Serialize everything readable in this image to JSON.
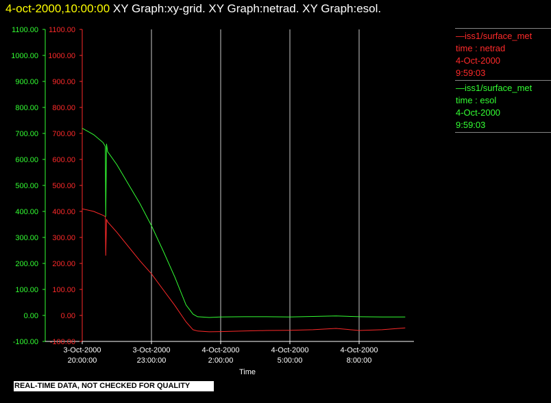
{
  "header": {
    "timestamp": "4-oct-2000,10:00:00",
    "graphs_text": "XY Graph:xy-grid.  XY Graph:netrad.  XY Graph:esol."
  },
  "legend": [
    {
      "line1": "—iss1/surface_met",
      "line2": "time : netrad",
      "line3": "4-Oct-2000",
      "line4": "9:59:03",
      "color": "#ff2a2a"
    },
    {
      "line1": "—iss1/surface_met",
      "line2": "time : esol",
      "line3": "4-Oct-2000",
      "line4": "9:59:03",
      "color": "#33ff33"
    }
  ],
  "footer": {
    "notice": "REAL-TIME DATA, NOT CHECKED FOR QUALITY"
  },
  "colors": {
    "netrad": "#ff2a2a",
    "esol": "#33ff33",
    "grid": "#cccccc",
    "axis_text": "#ffffff"
  },
  "chart_data": {
    "type": "line",
    "xlabel": "Time",
    "x_ticks": [
      {
        "h": 20,
        "l1": "3-Oct-2000",
        "l2": "20:00:00"
      },
      {
        "h": 23,
        "l1": "3-Oct-2000",
        "l2": "23:00:00"
      },
      {
        "h": 26,
        "l1": "4-Oct-2000",
        "l2": "2:00:00"
      },
      {
        "h": 29,
        "l1": "4-Oct-2000",
        "l2": "5:00:00"
      },
      {
        "h": 32,
        "l1": "4-Oct-2000",
        "l2": "8:00:00"
      }
    ],
    "x_range_hours": [
      20,
      34.5
    ],
    "ylim": [
      -100,
      1100
    ],
    "y_ticks": [
      -100,
      0,
      100,
      200,
      300,
      400,
      500,
      600,
      700,
      800,
      900,
      1000,
      1100
    ],
    "y_tick_labels": [
      "-100.00",
      "0.00",
      "100.00",
      "200.00",
      "300.00",
      "400.00",
      "500.00",
      "600.00",
      "700.00",
      "800.00",
      "900.00",
      "1000.00",
      "1100.00"
    ],
    "series": [
      {
        "name": "netrad",
        "x": [
          20.0,
          20.5,
          20.9,
          21.0,
          21.02,
          21.05,
          21.1,
          21.5,
          22.0,
          22.5,
          23.0,
          23.5,
          24.0,
          24.5,
          24.8,
          25.0,
          25.5,
          26.0,
          27.0,
          28.0,
          29.0,
          30.0,
          31.0,
          32.0,
          33.0,
          34.0
        ],
        "y": [
          410,
          400,
          385,
          380,
          230,
          370,
          360,
          320,
          265,
          210,
          160,
          100,
          40,
          -25,
          -55,
          -60,
          -63,
          -62,
          -60,
          -58,
          -57,
          -55,
          -50,
          -58,
          -55,
          -48
        ]
      },
      {
        "name": "esol",
        "x": [
          20.0,
          20.5,
          20.9,
          21.0,
          21.02,
          21.05,
          21.1,
          21.5,
          22.0,
          22.5,
          23.0,
          23.5,
          24.0,
          24.5,
          24.8,
          25.0,
          25.5,
          26.0,
          27.0,
          28.0,
          29.0,
          30.0,
          31.0,
          32.0,
          33.0,
          34.0
        ],
        "y": [
          720,
          695,
          665,
          650,
          380,
          660,
          630,
          580,
          505,
          430,
          345,
          250,
          150,
          40,
          5,
          -5,
          -8,
          -6,
          -5,
          -5,
          -6,
          -4,
          -2,
          -5,
          -6,
          -6
        ]
      }
    ]
  }
}
